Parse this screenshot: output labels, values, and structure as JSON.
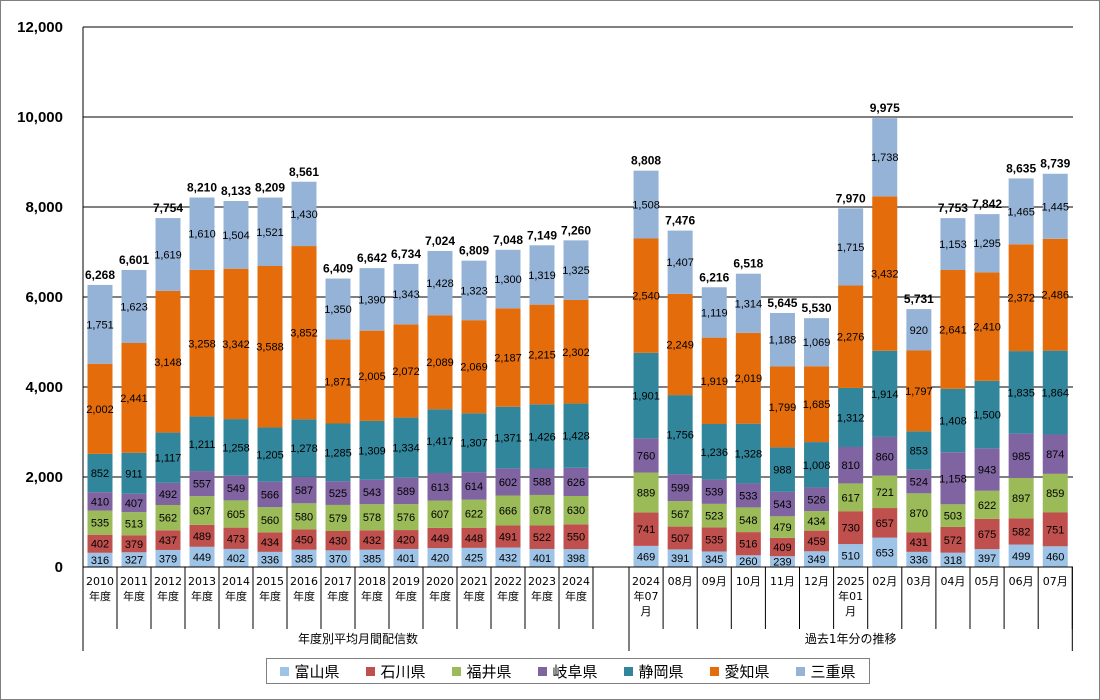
{
  "chart_data": {
    "type": "bar",
    "stacked": true,
    "ylim": [
      0,
      12000
    ],
    "yticks": [
      "0",
      "2,000",
      "4,000",
      "6,000",
      "8,000",
      "10,000",
      "12,000"
    ],
    "grid": true,
    "legend_position": "bottom",
    "groups": [
      {
        "label": "年度別平均月間配信数",
        "categories": [
          [
            "2010",
            "年度"
          ],
          [
            "2011",
            "年度"
          ],
          [
            "2012",
            "年度"
          ],
          [
            "2013",
            "年度"
          ],
          [
            "2014",
            "年度"
          ],
          [
            "2015",
            "年度"
          ],
          [
            "2016",
            "年度"
          ],
          [
            "2017",
            "年度"
          ],
          [
            "2018",
            "年度"
          ],
          [
            "2019",
            "年度"
          ],
          [
            "2020",
            "年度"
          ],
          [
            "2021",
            "年度"
          ],
          [
            "2022",
            "年度"
          ],
          [
            "2023",
            "年度"
          ],
          [
            "2024",
            "年度"
          ]
        ],
        "totals": [
          6268,
          6601,
          7754,
          8210,
          8133,
          8209,
          8561,
          6409,
          6642,
          6734,
          7024,
          6809,
          7048,
          7149,
          7260
        ]
      },
      {
        "label": "過去1年分の推移",
        "categories": [
          [
            "2024",
            "年07",
            "月"
          ],
          [
            "08月"
          ],
          [
            "09月"
          ],
          [
            "10月"
          ],
          [
            "11月"
          ],
          [
            "12月"
          ],
          [
            "2025",
            "年01",
            "月"
          ],
          [
            "02月"
          ],
          [
            "03月"
          ],
          [
            "04月"
          ],
          [
            "05月"
          ],
          [
            "06月"
          ],
          [
            "07月"
          ]
        ],
        "totals": [
          8808,
          7476,
          6216,
          6518,
          5645,
          5530,
          7970,
          9975,
          5731,
          7753,
          7842,
          8635,
          8739
        ]
      }
    ],
    "series": [
      {
        "name": "富山県",
        "color": "#9dc3e6",
        "values": [
          316,
          327,
          379,
          449,
          402,
          336,
          385,
          370,
          385,
          401,
          420,
          425,
          432,
          401,
          398,
          469,
          391,
          345,
          260,
          239,
          349,
          510,
          653,
          336,
          318,
          397,
          499,
          460
        ]
      },
      {
        "name": "石川県",
        "color": "#c0504d",
        "values": [
          402,
          379,
          437,
          489,
          473,
          434,
          450,
          430,
          432,
          420,
          449,
          448,
          491,
          522,
          550,
          741,
          507,
          535,
          516,
          409,
          459,
          730,
          657,
          431,
          572,
          675,
          582,
          751
        ]
      },
      {
        "name": "福井県",
        "color": "#9bbb59",
        "values": [
          535,
          513,
          562,
          637,
          605,
          560,
          580,
          579,
          578,
          576,
          607,
          622,
          666,
          678,
          630,
          889,
          567,
          523,
          548,
          479,
          434,
          617,
          721,
          870,
          503,
          622,
          897,
          859
        ]
      },
      {
        "name": "岐阜県",
        "color": "#8064a2",
        "values": [
          410,
          407,
          492,
          557,
          549,
          566,
          587,
          525,
          543,
          589,
          613,
          614,
          602,
          588,
          626,
          760,
          599,
          539,
          533,
          543,
          526,
          810,
          860,
          524,
          1158,
          943,
          985,
          874
        ]
      },
      {
        "name": "静岡県",
        "color": "#31869b",
        "values": [
          852,
          911,
          1117,
          1211,
          1258,
          1205,
          1278,
          1285,
          1309,
          1334,
          1417,
          1307,
          1371,
          1426,
          1428,
          1901,
          1756,
          1236,
          1328,
          988,
          1008,
          1312,
          1914,
          853,
          1408,
          1500,
          1835,
          1864
        ]
      },
      {
        "name": "愛知県",
        "color": "#e46c0a",
        "values": [
          2002,
          2441,
          3148,
          3258,
          3342,
          3588,
          3852,
          1871,
          2005,
          2072,
          2089,
          2069,
          2187,
          2215,
          2302,
          2540,
          2249,
          1919,
          2019,
          1799,
          1685,
          2276,
          3432,
          1797,
          2641,
          2410,
          2372,
          2486
        ]
      },
      {
        "name": "三重県",
        "color": "#95b3d7",
        "values": [
          1751,
          1623,
          1619,
          1610,
          1504,
          1521,
          1430,
          1350,
          1390,
          1343,
          1428,
          1323,
          1300,
          1319,
          1325,
          1508,
          1407,
          1119,
          1314,
          1188,
          1069,
          1715,
          1738,
          920,
          1153,
          1295,
          1465,
          1445
        ]
      }
    ],
    "data_labels_shown": [
      "316",
      "327",
      "379",
      "449",
      "402",
      "336",
      "385",
      "370",
      "385",
      "401",
      "420",
      "425",
      "432",
      "401",
      "398",
      "469",
      "391",
      "345",
      "260",
      "239",
      "349",
      "510",
      "653",
      "336",
      "318",
      "397",
      "499",
      "460",
      "402",
      "379",
      "437",
      "489",
      "473",
      "434",
      "450",
      "430",
      "432",
      "420",
      "449",
      "448",
      "491",
      "522",
      "550",
      "741",
      "507",
      "535",
      "516",
      "409",
      "459",
      "730",
      "657",
      "431",
      "572",
      "675",
      "582",
      "751",
      "535",
      "513",
      "562",
      "637",
      "605",
      "560",
      "580",
      "579",
      "578",
      "576",
      "607",
      "622",
      "666",
      "678",
      "630",
      "889",
      "567",
      "523",
      "548",
      "479",
      "434",
      "617",
      "721",
      "870",
      "503",
      "622",
      "897",
      "859",
      "410",
      "407",
      "492",
      "557",
      "549",
      "566",
      "587",
      "525",
      "543",
      "589",
      "613",
      "614",
      "602",
      "588",
      "626",
      "760",
      "599",
      "539",
      "533",
      "543",
      "526",
      "810",
      "860",
      "524",
      "1,158",
      "943",
      "985",
      "874",
      "852",
      "911",
      "1,117",
      "1,211",
      "1,258",
      "1,205",
      "1,278",
      "1,285",
      "1,309",
      "1,334",
      "1,417",
      "1,307",
      "1,371",
      "1,426",
      "1,428",
      "1,901",
      "1,756",
      "1,236",
      "1,328",
      "988",
      "1,008",
      "1,312",
      "1,914",
      "853",
      "1,408",
      "1,500",
      "1,835",
      "1,864",
      "2,002",
      "2,441",
      "3,148",
      "3,258",
      "3,342",
      "3,588",
      "3,852",
      "1,871",
      "2,005",
      "2,072",
      "2,089",
      "2,069",
      "2,187",
      "2,215",
      "2,302",
      "2,540",
      "2,249",
      "1,919",
      "2,019",
      "1,799",
      "1,685",
      "2,276",
      "3,432",
      "1,797",
      "2,641",
      "2,410",
      "2,372",
      "2,486",
      "1,751",
      "1,623",
      "1,619",
      "1,610",
      "1,504",
      "1,521",
      "1,430",
      "1,350",
      "1,390",
      "1,343",
      "1,428",
      "1,323",
      "1,300",
      "1,319",
      "1,325",
      "1,508",
      "1,407",
      "1,119",
      "1,314",
      "1,188",
      "1,069",
      "1,715",
      "1,738",
      "920",
      "1,153",
      "1,295",
      "1,465",
      "1,445",
      "6,268",
      "6,601",
      "7,754",
      "8,210",
      "8,133",
      "8,209",
      "8,561",
      "6,409",
      "6,642",
      "6,734",
      "7,024",
      "6,809",
      "7,048",
      "7,149",
      "7,260",
      "8,808",
      "7,476",
      "6,216",
      "6,518",
      "5,645",
      "5,530",
      "7,970",
      "9,975",
      "5,731",
      "7,753",
      "7,842",
      "8,635",
      "8,739"
    ]
  }
}
